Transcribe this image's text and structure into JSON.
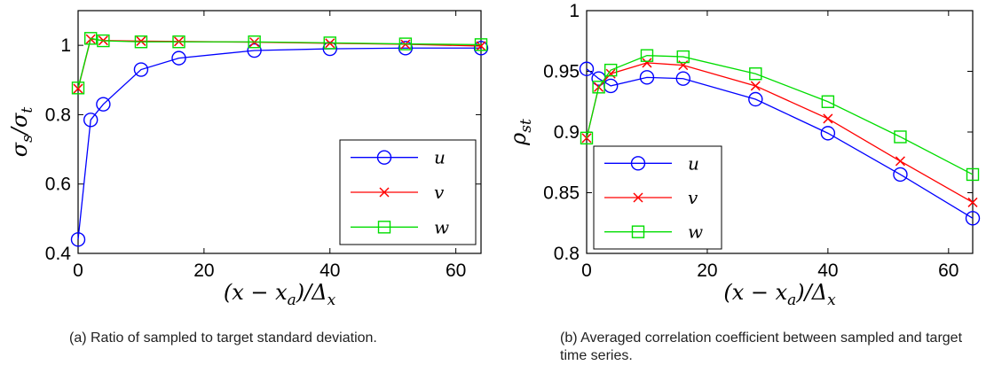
{
  "chart_data": [
    {
      "id": "a",
      "type": "line",
      "x": [
        0,
        2,
        4,
        10,
        16,
        28,
        40,
        52,
        64
      ],
      "xlim": [
        0,
        64
      ],
      "ylim": [
        0.4,
        1.1
      ],
      "xticks": [
        0,
        20,
        40,
        60
      ],
      "yticks": [
        0.4,
        0.6,
        0.8,
        1
      ],
      "xtick_labels": [
        "0",
        "20",
        "40",
        "60"
      ],
      "ytick_labels": [
        "0.4",
        "0.6",
        "0.8",
        "1"
      ],
      "xlabel": "(x − x_a)/Δ_x",
      "ylabel": "σ_s/σ_t",
      "legend": "bottom-right",
      "grid": false,
      "series": [
        {
          "name": "u",
          "color": "#0000ff",
          "marker": "circle",
          "values": [
            0.44,
            0.785,
            0.83,
            0.93,
            0.963,
            0.985,
            0.99,
            0.992,
            0.992
          ]
        },
        {
          "name": "v",
          "color": "#ff0000",
          "marker": "x",
          "values": [
            0.875,
            1.018,
            1.014,
            1.012,
            1.011,
            1.009,
            1.006,
            1.003,
            0.998
          ]
        },
        {
          "name": "w",
          "color": "#00dd00",
          "marker": "square",
          "values": [
            0.877,
            1.02,
            1.013,
            1.01,
            1.01,
            1.01,
            1.007,
            1.004,
            1.002
          ]
        }
      ],
      "caption": "(a)  Ratio of sampled to target standard deviation."
    },
    {
      "id": "b",
      "type": "line",
      "x": [
        0,
        2,
        4,
        10,
        16,
        28,
        40,
        52,
        64
      ],
      "xlim": [
        0,
        64
      ],
      "ylim": [
        0.8,
        1
      ],
      "xticks": [
        0,
        20,
        40,
        60
      ],
      "yticks": [
        0.8,
        0.85,
        0.9,
        0.95,
        1
      ],
      "xtick_labels": [
        "0",
        "20",
        "40",
        "60"
      ],
      "ytick_labels": [
        "0.8",
        "0.85",
        "0.9",
        "0.95",
        "1"
      ],
      "xlabel": "(x − x_a)/Δ_x",
      "ylabel": "ρ_st",
      "legend": "bottom-left",
      "grid": false,
      "series": [
        {
          "name": "u",
          "color": "#0000ff",
          "marker": "circle",
          "values": [
            0.952,
            0.944,
            0.938,
            0.945,
            0.944,
            0.927,
            0.899,
            0.865,
            0.829
          ]
        },
        {
          "name": "v",
          "color": "#ff0000",
          "marker": "x",
          "values": [
            0.895,
            0.937,
            0.948,
            0.957,
            0.955,
            0.938,
            0.911,
            0.876,
            0.842
          ]
        },
        {
          "name": "w",
          "color": "#00dd00",
          "marker": "square",
          "values": [
            0.895,
            0.937,
            0.951,
            0.963,
            0.962,
            0.948,
            0.925,
            0.896,
            0.865
          ]
        }
      ],
      "caption": "(b)  Averaged correlation coefficient between sampled and target time series."
    }
  ]
}
